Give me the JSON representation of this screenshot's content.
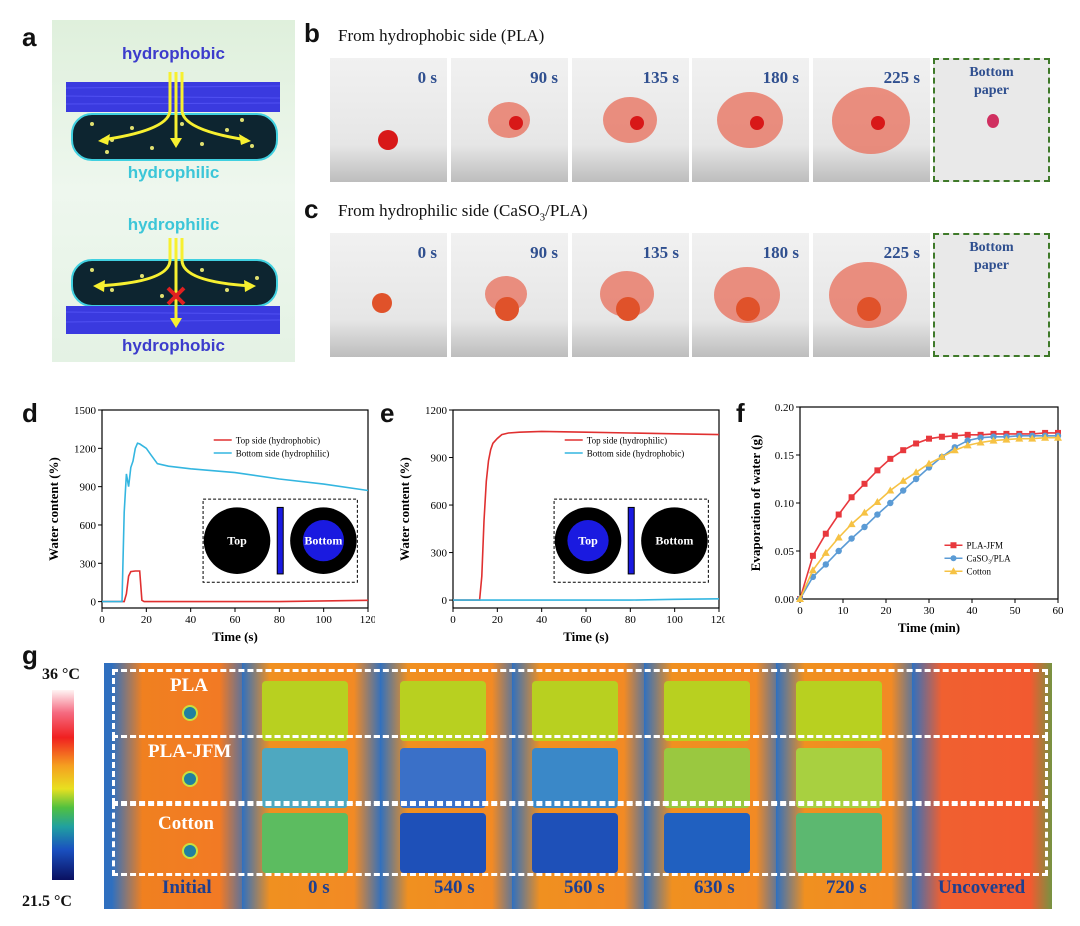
{
  "panel_a": {
    "letter": "a",
    "top_outer_label": "hydrophobic",
    "top_inner_label": "hydrophilic",
    "bottom_inner_label": "hydrophilic",
    "bottom_outer_label": "hydrophobic"
  },
  "panel_b": {
    "letter": "b",
    "title": "From hydrophobic side (PLA)",
    "times": [
      "0 s",
      "90 s",
      "135 s",
      "180 s",
      "225 s"
    ],
    "bottom_label": "Bottom paper"
  },
  "panel_c": {
    "letter": "c",
    "title_prefix": "From hydrophilic side (CaSO",
    "title_sub": "3",
    "title_suffix": "/PLA)",
    "times": [
      "0 s",
      "90 s",
      "135 s",
      "180 s",
      "225 s"
    ],
    "bottom_label": "Bottom paper"
  },
  "panel_g": {
    "letter": "g",
    "scale_max": "36 °C",
    "scale_min": "21.5 °C",
    "samples": [
      "PLA",
      "PLA-JFM",
      "Cotton"
    ],
    "frames": [
      "Initial",
      "0 s",
      "540 s",
      "560 s",
      "630 s",
      "720 s",
      "Uncovered"
    ]
  },
  "chart_data": [
    {
      "id": "d",
      "type": "line",
      "letter": "d",
      "xlabel": "Time (s)",
      "ylabel": "Water content (%)",
      "xlim": [
        0,
        120
      ],
      "ylim": [
        -50,
        1500
      ],
      "xticks": [
        0,
        20,
        40,
        60,
        80,
        100,
        120
      ],
      "yticks": [
        0,
        300,
        600,
        900,
        1200,
        1500
      ],
      "legend_position": "top-right",
      "inset": {
        "left": "Top",
        "right": "Bottom",
        "highlight": "right"
      },
      "series": [
        {
          "name": "Top side (hydrophobic)",
          "color": "#e03030",
          "x": [
            0,
            10,
            11,
            12,
            13,
            15,
            17,
            18,
            19,
            20,
            40,
            80,
            120
          ],
          "y": [
            0,
            0,
            60,
            200,
            235,
            240,
            240,
            10,
            0,
            0,
            0,
            0,
            10
          ]
        },
        {
          "name": "Bottom side (hydrophilic)",
          "color": "#34b6e0",
          "x": [
            0,
            9,
            10,
            11,
            12,
            13,
            14,
            15,
            16,
            17,
            20,
            22,
            25,
            30,
            40,
            60,
            80,
            100,
            120
          ],
          "y": [
            0,
            0,
            700,
            1000,
            900,
            1050,
            1100,
            1200,
            1240,
            1235,
            1200,
            1150,
            1080,
            1060,
            1040,
            1010,
            960,
            920,
            870
          ]
        }
      ]
    },
    {
      "id": "e",
      "type": "line",
      "letter": "e",
      "xlabel": "Time (s)",
      "ylabel": "Water content (%)",
      "xlim": [
        0,
        120
      ],
      "ylim": [
        -50,
        1200
      ],
      "xticks": [
        0,
        20,
        40,
        60,
        80,
        100,
        120
      ],
      "yticks": [
        0,
        300,
        600,
        900,
        1200
      ],
      "legend_position": "top-right",
      "inset": {
        "left": "Top",
        "right": "Bottom",
        "highlight": "left"
      },
      "series": [
        {
          "name": "Top side (hydrophilic)",
          "color": "#e03030",
          "x": [
            0,
            12,
            13,
            14,
            15,
            16,
            17,
            18,
            20,
            22,
            25,
            30,
            40,
            60,
            80,
            100,
            120
          ],
          "y": [
            0,
            0,
            150,
            500,
            750,
            880,
            950,
            990,
            1020,
            1045,
            1055,
            1060,
            1065,
            1060,
            1055,
            1050,
            1045
          ]
        },
        {
          "name": "Bottom side (hydrophobic)",
          "color": "#34b6e0",
          "x": [
            0,
            20,
            40,
            60,
            80,
            100,
            120
          ],
          "y": [
            0,
            0,
            0,
            0,
            0,
            5,
            8
          ]
        }
      ]
    },
    {
      "id": "f",
      "type": "line",
      "letter": "f",
      "xlabel": "Time (min)",
      "ylabel": "Evaporation of water (g)",
      "xlim": [
        0,
        60
      ],
      "ylim": [
        0,
        0.2
      ],
      "xticks": [
        0,
        10,
        20,
        30,
        40,
        50,
        60
      ],
      "yticks": [
        0.0,
        0.05,
        0.1,
        0.15,
        0.2
      ],
      "legend_position": "bottom-right",
      "series": [
        {
          "name": "PLA-JFM",
          "color": "#e8383d",
          "marker": "square",
          "x": [
            0,
            3,
            6,
            9,
            12,
            15,
            18,
            21,
            24,
            27,
            30,
            33,
            36,
            39,
            42,
            45,
            48,
            51,
            54,
            57,
            60
          ],
          "y": [
            0,
            0.045,
            0.068,
            0.088,
            0.106,
            0.12,
            0.134,
            0.146,
            0.155,
            0.162,
            0.167,
            0.169,
            0.17,
            0.171,
            0.171,
            0.172,
            0.172,
            0.172,
            0.172,
            0.173,
            0.173
          ]
        },
        {
          "name": "CaSO₃/PLA",
          "color": "#5b9bd5",
          "marker": "circle",
          "x": [
            0,
            3,
            6,
            9,
            12,
            15,
            18,
            21,
            24,
            27,
            30,
            33,
            36,
            39,
            42,
            45,
            48,
            51,
            54,
            57,
            60
          ],
          "y": [
            0,
            0.023,
            0.036,
            0.05,
            0.063,
            0.075,
            0.088,
            0.1,
            0.113,
            0.125,
            0.137,
            0.148,
            0.158,
            0.165,
            0.168,
            0.169,
            0.169,
            0.17,
            0.17,
            0.17,
            0.17
          ]
        },
        {
          "name": "Cotton",
          "color": "#f6c244",
          "marker": "triangle",
          "x": [
            0,
            3,
            6,
            9,
            12,
            15,
            18,
            21,
            24,
            27,
            30,
            33,
            36,
            39,
            42,
            45,
            48,
            51,
            54,
            57,
            60
          ],
          "y": [
            0,
            0.03,
            0.048,
            0.064,
            0.078,
            0.09,
            0.101,
            0.113,
            0.123,
            0.132,
            0.141,
            0.148,
            0.155,
            0.16,
            0.163,
            0.165,
            0.166,
            0.167,
            0.167,
            0.168,
            0.168
          ]
        }
      ]
    }
  ]
}
